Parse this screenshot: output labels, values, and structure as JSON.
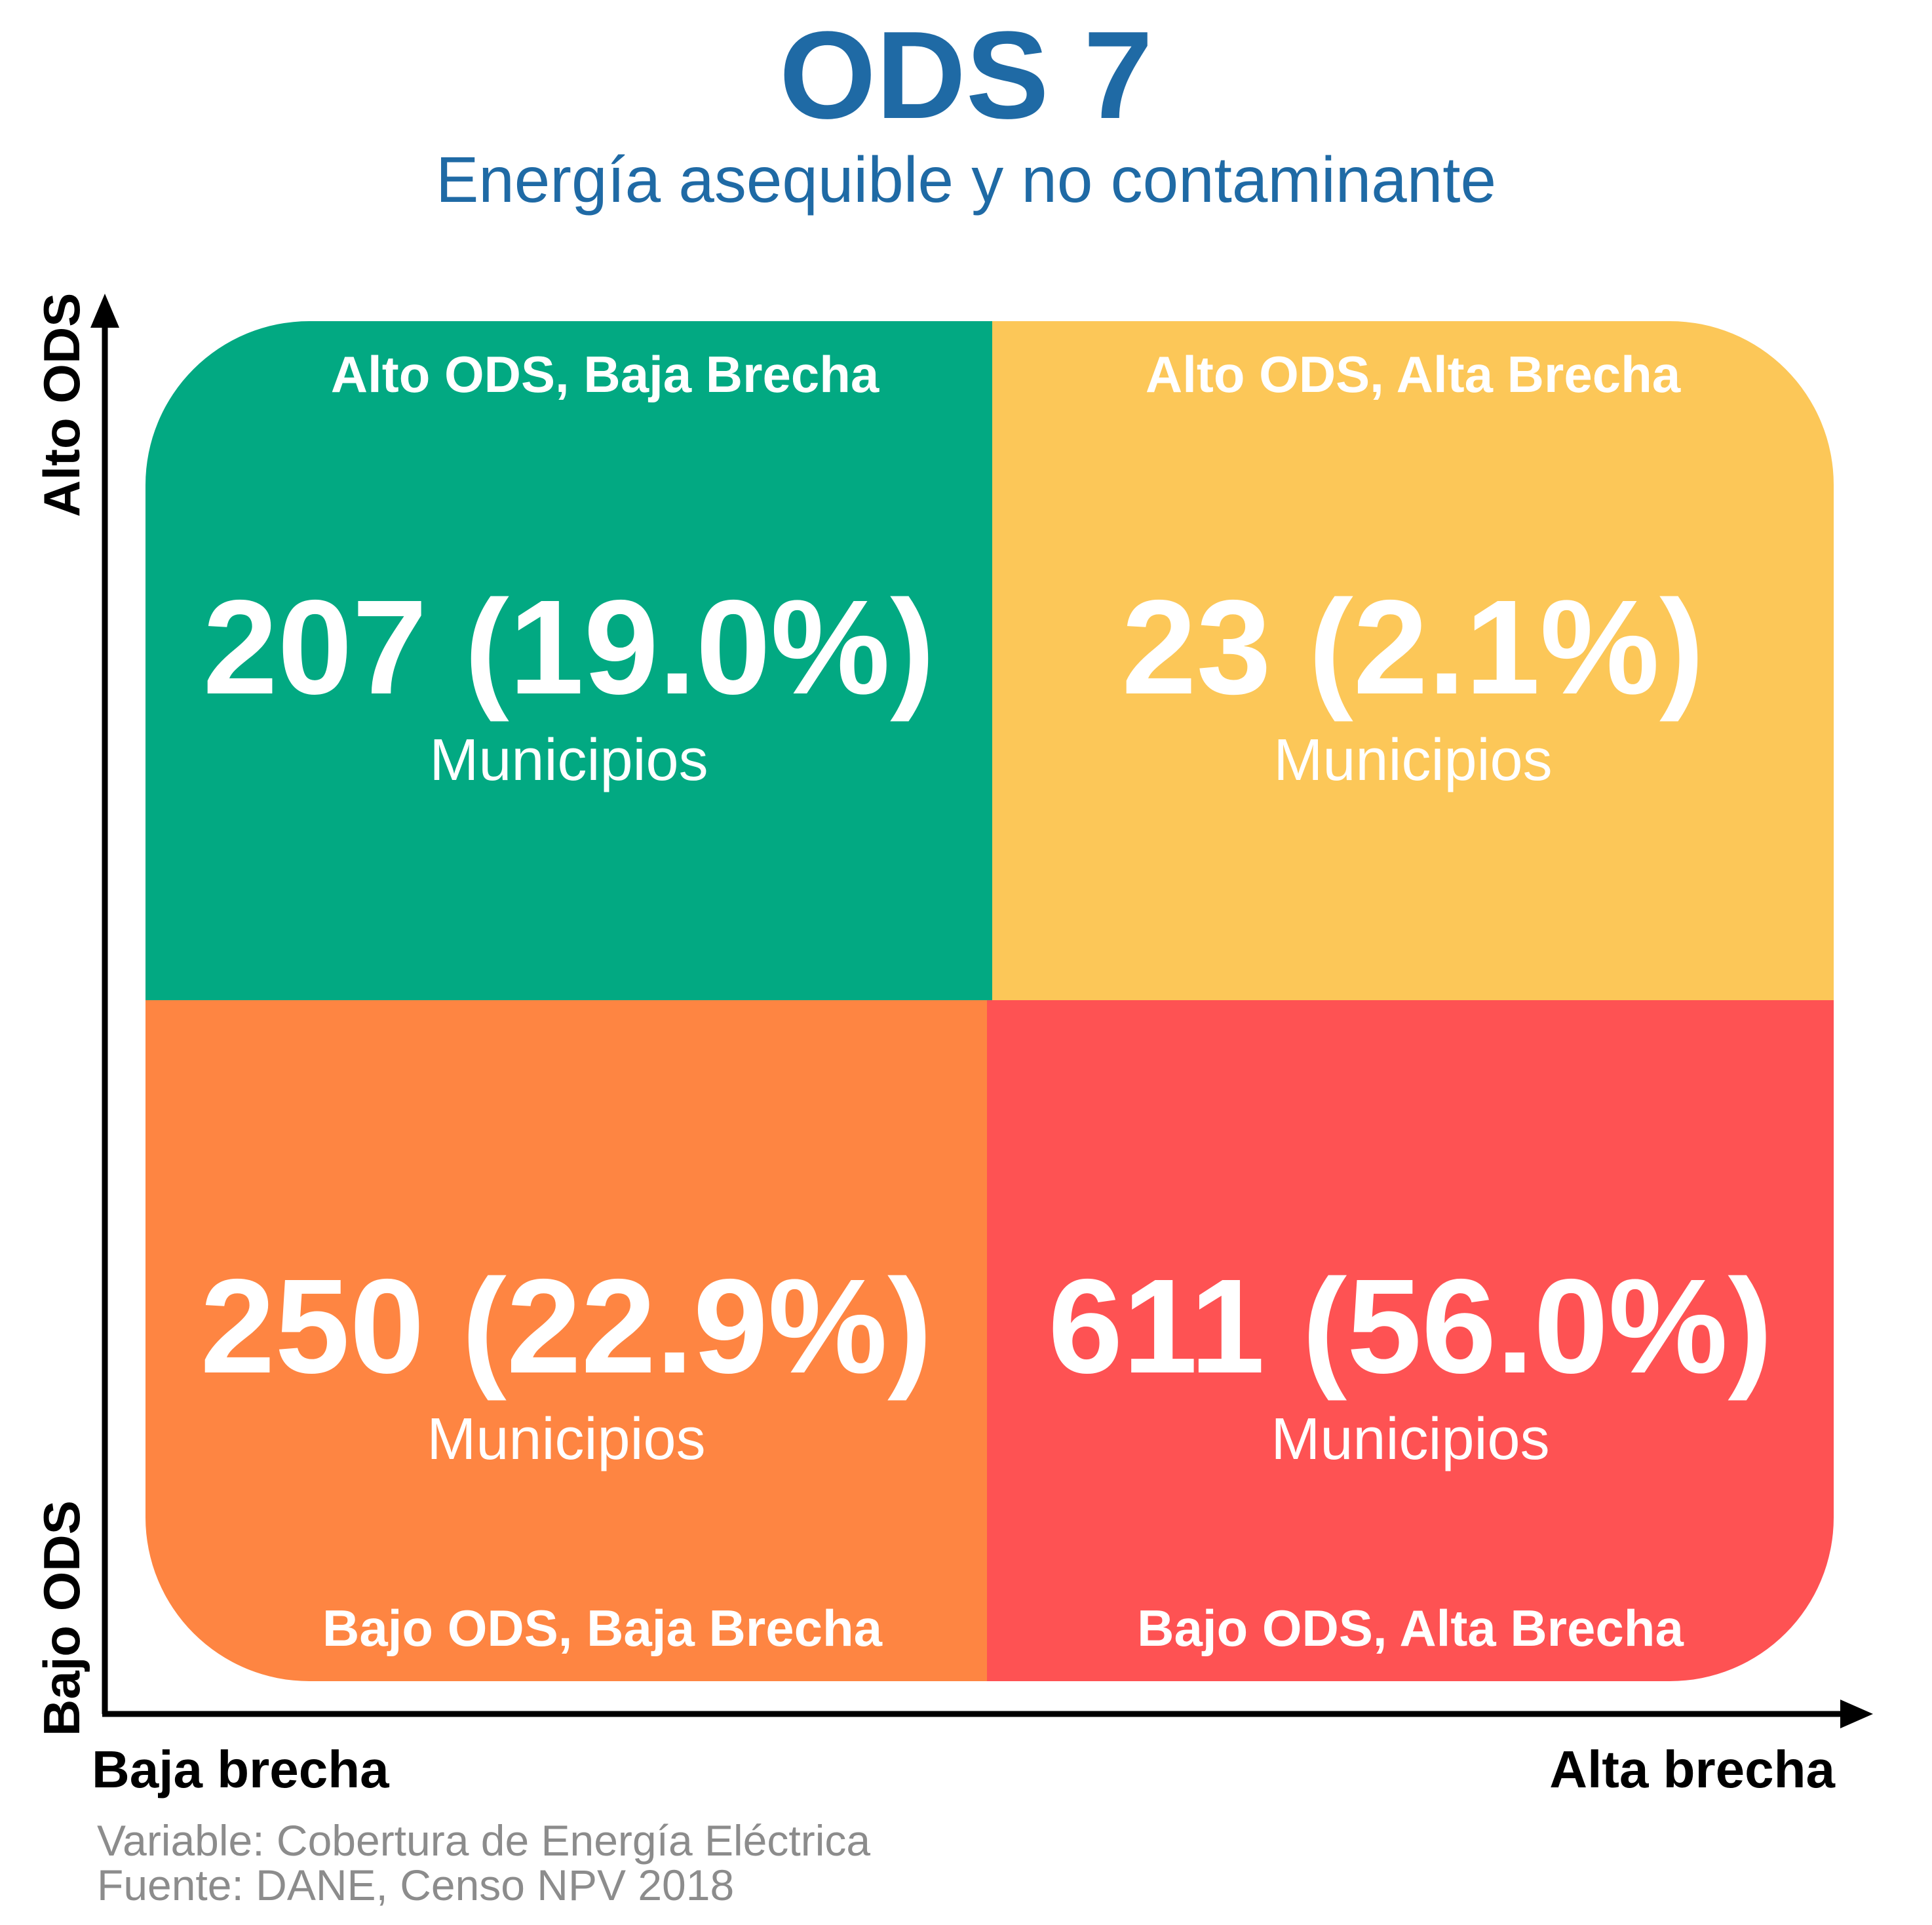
{
  "title": "ODS 7",
  "subtitle": "Energía asequible y no contaminante",
  "quadrants": {
    "top_left": {
      "label": "Alto ODS, Baja Brecha",
      "value": "207 (19.0%)",
      "unit": "Municipios",
      "color": "#02a982"
    },
    "top_right": {
      "label": "Alto ODS, Alta Brecha",
      "value": "23 (2.1%)",
      "unit": "Municipios",
      "color": "#fcc758"
    },
    "bottom_left": {
      "label": "Bajo ODS, Baja Brecha",
      "value": "250 (22.9%)",
      "unit": "Municipios",
      "color": "#fe8542"
    },
    "bottom_right": {
      "label": "Bajo ODS, Alta Brecha",
      "value": "611 (56.0%)",
      "unit": "Municipios",
      "color": "#fe5253"
    }
  },
  "axes": {
    "y_top": "Alto ODS",
    "y_bottom": "Bajo ODS",
    "x_left": "Baja brecha",
    "x_right": "Alta brecha"
  },
  "footer": {
    "variable": "Variable: Cobertura de Energía Eléctrica",
    "source": "Fuente: DANE, Censo NPV 2018"
  }
}
